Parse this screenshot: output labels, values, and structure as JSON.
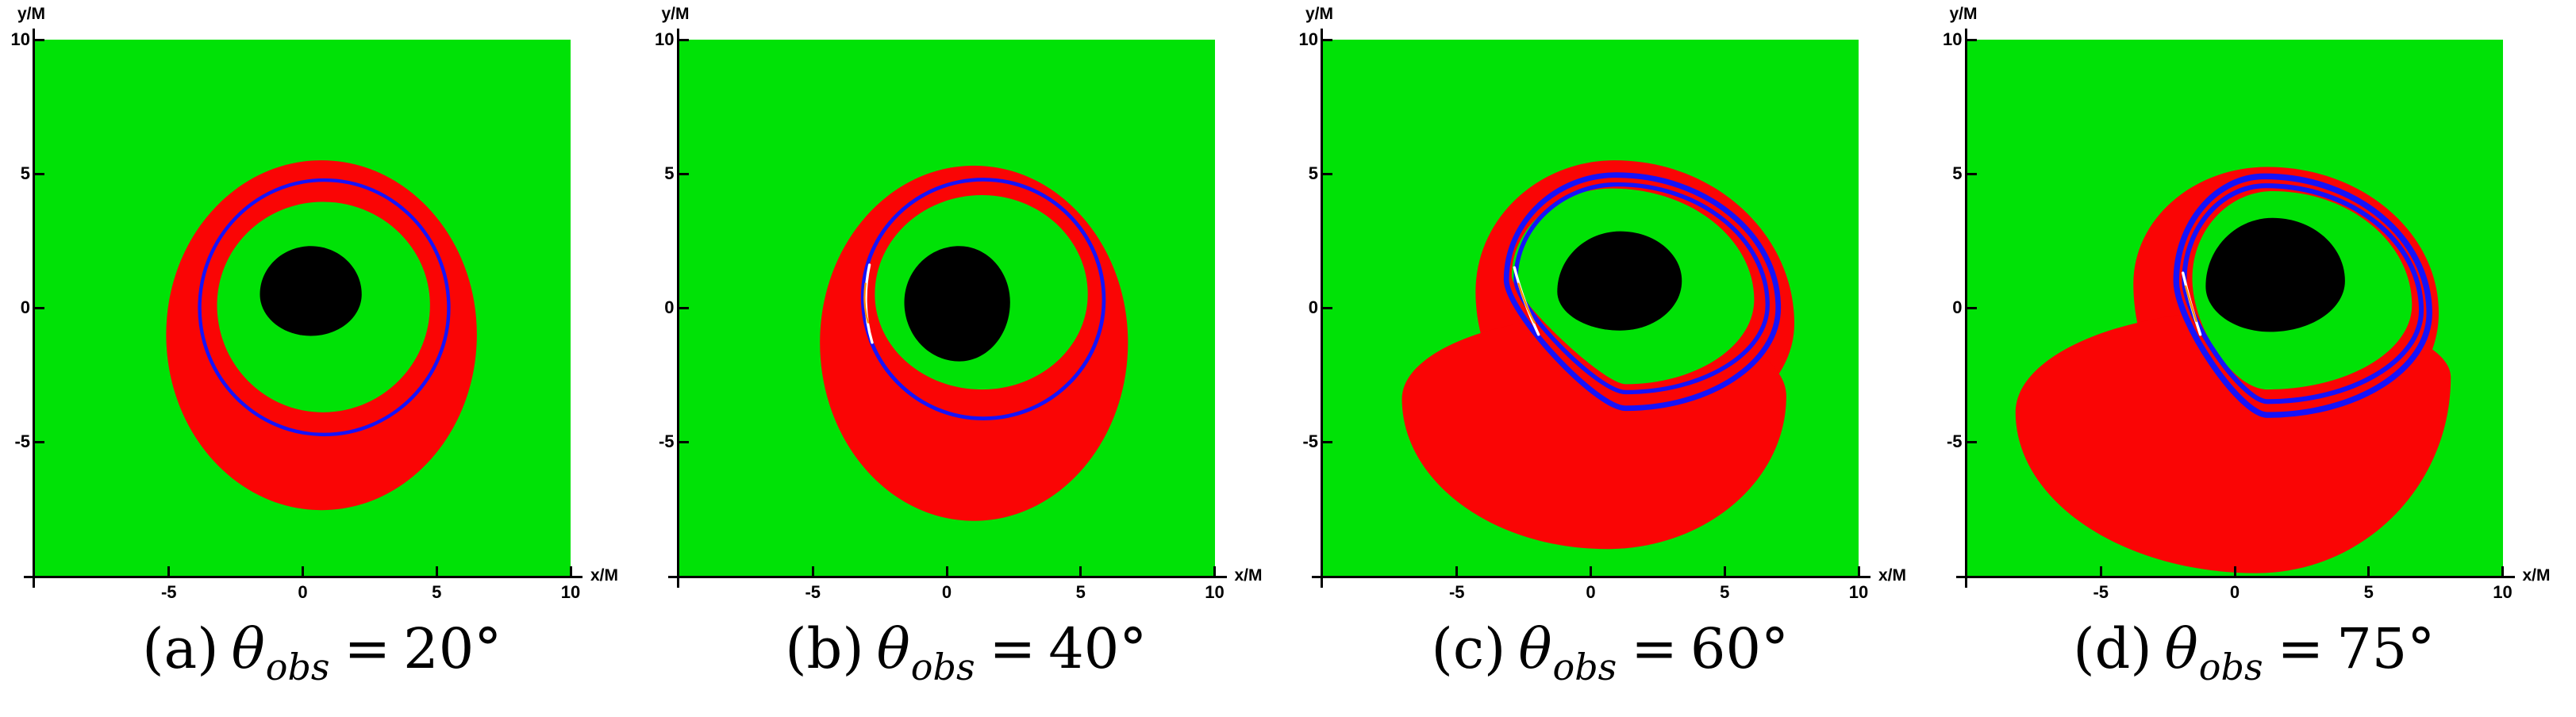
{
  "colors": {
    "background": "#ffffff",
    "plot_green": "#00e206",
    "disk_red": "#fa0505",
    "ring_blue": "#1512fa",
    "shadow_black": "#000000",
    "axis_black": "#000000",
    "artifact_white": "#ffffff",
    "artifact_orange": "#ff8c00"
  },
  "axes": {
    "x_label": "x/M",
    "y_label": "y/M",
    "xlim": [
      -10,
      10
    ],
    "ylim": [
      -10,
      10
    ],
    "x_ticks": [
      -5,
      0,
      5,
      10
    ],
    "y_ticks": [
      10,
      5,
      0,
      -5
    ],
    "grid": false
  },
  "chart_data": [
    {
      "type": "region-plot",
      "caption_prefix": "(a)",
      "caption_theta": "θ",
      "caption_sub": "obs",
      "caption_eq": "=",
      "caption_value": "20°",
      "theta_obs_deg": 20,
      "xlabel": "x/M",
      "ylabel": "y/M",
      "xlim": [
        -10,
        10
      ],
      "ylim": [
        -10,
        10
      ],
      "x_ticks": [
        -5,
        0,
        5,
        10
      ],
      "y_ticks": [
        10,
        5,
        0,
        -5
      ],
      "regions": {
        "background": "green",
        "red_primary_disk_image": [
          {
            "left": [
              -5.1,
              -1.0
            ],
            "top": [
              0.7,
              5.5
            ],
            "right": [
              6.5,
              -1.0
            ],
            "bottom": [
              0.7,
              -7.55
            ]
          }
        ],
        "inner_green_hole": {
          "left": [
            -3.2,
            0.1
          ],
          "top": [
            0.75,
            3.95
          ],
          "right": [
            4.75,
            0.1
          ],
          "bottom": [
            0.75,
            -3.9
          ]
        },
        "blue_secondary_ring_images": [
          {
            "left": [
              -3.85,
              0.0
            ],
            "top": [
              0.8,
              4.76
            ],
            "right": [
              5.45,
              0.0
            ],
            "bottom": [
              0.8,
              -4.73
            ],
            "sw": 0.13
          }
        ],
        "artifact_arcs": [],
        "black_shadow": {
          "left": [
            -1.6,
            0.5
          ],
          "top": [
            0.3,
            2.3
          ],
          "right": [
            2.2,
            0.5
          ],
          "bottom": [
            0.3,
            -1.05
          ]
        }
      }
    },
    {
      "type": "region-plot",
      "caption_prefix": "(b)",
      "caption_theta": "θ",
      "caption_sub": "obs",
      "caption_eq": "=",
      "caption_value": "40°",
      "theta_obs_deg": 40,
      "xlabel": "x/M",
      "ylabel": "y/M",
      "xlim": [
        -10,
        10
      ],
      "ylim": [
        -10,
        10
      ],
      "x_ticks": [
        -5,
        0,
        5,
        10
      ],
      "y_ticks": [
        10,
        5,
        0,
        -5
      ],
      "regions": {
        "background": "green",
        "red_primary_disk_image": [
          {
            "left": [
              -4.75,
              -1.3
            ],
            "top": [
              1.0,
              5.3
            ],
            "right": [
              6.75,
              -1.3
            ],
            "bottom": [
              1.0,
              -7.95
            ]
          }
        ],
        "inner_green_hole": {
          "left": [
            -2.7,
            0.5
          ],
          "top": [
            1.3,
            4.2
          ],
          "right": [
            5.25,
            0.5
          ],
          "bottom": [
            1.3,
            -3.05
          ]
        },
        "blue_secondary_ring_images": [
          {
            "left": [
              -3.15,
              0.4
            ],
            "top": [
              1.35,
              4.78
            ],
            "right": [
              5.85,
              0.3
            ],
            "bottom": [
              1.35,
              -4.13
            ],
            "sw": 0.14
          }
        ],
        "artifact_arcs": [
          {
            "pts": [
              [
                -2.9,
                1.6
              ],
              [
                -3.22,
                0.1
              ],
              [
                -2.8,
                -1.3
              ]
            ],
            "color": "white",
            "sw": 0.1
          },
          {
            "pts": [
              [
                -3.05,
                0.9
              ],
              [
                -3.15,
                0.1
              ],
              [
                -2.95,
                -0.55
              ]
            ],
            "color": "orange",
            "sw": 0.07
          }
        ],
        "black_shadow": {
          "left": [
            -1.6,
            0.2
          ],
          "top": [
            0.45,
            2.3
          ],
          "right": [
            2.35,
            0.2
          ],
          "bottom": [
            0.45,
            -2.0
          ]
        }
      }
    },
    {
      "type": "region-plot",
      "caption_prefix": "(c)",
      "caption_theta": "θ",
      "caption_sub": "obs",
      "caption_eq": "=",
      "caption_value": "60°",
      "theta_obs_deg": 60,
      "xlabel": "x/M",
      "ylabel": "y/M",
      "xlim": [
        -10,
        10
      ],
      "ylim": [
        -10,
        10
      ],
      "x_ticks": [
        -5,
        0,
        5,
        10
      ],
      "y_ticks": [
        10,
        5,
        0,
        -5
      ],
      "regions": {
        "background": "green",
        "red_primary_disk_image": [
          {
            "left": [
              -4.3,
              0.6
            ],
            "top": [
              0.9,
              5.5
            ],
            "right": [
              7.6,
              -0.6
            ],
            "bottom": [
              0.9,
              -5.2
            ]
          },
          {
            "left": [
              -7.05,
              -3.4
            ],
            "top": [
              0.5,
              -0.3
            ],
            "right": [
              7.3,
              -3.3
            ],
            "bottom": [
              0.6,
              -9.0
            ]
          }
        ],
        "inner_green_hole": {
          "left": [
            -2.95,
            1.2
          ],
          "top": [
            0.8,
            4.45
          ],
          "right": [
            6.1,
            0.3
          ],
          "bottom": [
            1.3,
            -2.85
          ],
          "k": [
            0.55,
            0.55,
            0.55,
            0.2
          ]
        },
        "blue_secondary_ring_images": [
          {
            "left": [
              -3.15,
              1.05
            ],
            "top": [
              0.95,
              4.95
            ],
            "right": [
              7.0,
              0.0
            ],
            "bottom": [
              1.3,
              -3.75
            ],
            "sw": 0.2,
            "k": [
              0.55,
              0.55,
              0.55,
              0.25
            ]
          },
          {
            "left": [
              -2.8,
              1.05
            ],
            "top": [
              1.0,
              4.6
            ],
            "right": [
              6.6,
              0.1
            ],
            "bottom": [
              1.3,
              -3.15
            ],
            "sw": 0.16,
            "k": [
              0.55,
              0.55,
              0.55,
              0.25
            ]
          }
        ],
        "artifact_arcs": [
          {
            "pts": [
              [
                -2.85,
                1.5
              ],
              [
                -2.55,
                0.3
              ],
              [
                -1.95,
                -1.0
              ]
            ],
            "color": "white",
            "sw": 0.1
          },
          {
            "pts": [
              [
                -2.7,
                0.9
              ],
              [
                -2.45,
                0.1
              ],
              [
                -2.1,
                -0.55
              ]
            ],
            "color": "orange",
            "sw": 0.07
          }
        ],
        "black_shadow": {
          "left": [
            -1.25,
            0.6
          ],
          "top": [
            1.1,
            2.85
          ],
          "right": [
            3.4,
            1.0
          ],
          "bottom": [
            1.1,
            -0.85
          ]
        }
      }
    },
    {
      "type": "region-plot",
      "caption_prefix": "(d)",
      "caption_theta": "θ",
      "caption_sub": "obs",
      "caption_eq": "=",
      "caption_value": "75°",
      "theta_obs_deg": 75,
      "xlabel": "x/M",
      "ylabel": "y/M",
      "xlim": [
        -10,
        10
      ],
      "ylim": [
        -10,
        10
      ],
      "x_ticks": [
        -5,
        0,
        5,
        10
      ],
      "y_ticks": [
        10,
        5,
        0,
        -5
      ],
      "regions": {
        "background": "green",
        "red_primary_disk_image": [
          {
            "left": [
              -3.8,
              0.9
            ],
            "top": [
              1.2,
              5.25
            ],
            "right": [
              7.6,
              -0.2
            ],
            "bottom": [
              1.2,
              -5.2
            ]
          },
          {
            "left": [
              -8.2,
              -3.9
            ],
            "top": [
              0.5,
              -0.1
            ],
            "right": [
              8.05,
              -2.6
            ],
            "bottom": [
              0.8,
              -9.9
            ]
          }
        ],
        "inner_green_hole": {
          "left": [
            -1.6,
            1.1
          ],
          "top": [
            1.4,
            4.35
          ],
          "right": [
            6.6,
            0.1
          ],
          "bottom": [
            1.2,
            -3.05
          ],
          "k": [
            0.55,
            0.55,
            0.55,
            0.45
          ]
        },
        "blue_secondary_ring_images": [
          {
            "left": [
              -2.2,
              1.0
            ],
            "top": [
              1.1,
              4.9
            ],
            "right": [
              7.25,
              -0.2
            ],
            "bottom": [
              1.2,
              -4.0
            ],
            "sw": 0.22,
            "k": [
              0.55,
              0.55,
              0.55,
              0.3
            ]
          },
          {
            "left": [
              -1.9,
              1.0
            ],
            "top": [
              1.15,
              4.55
            ],
            "right": [
              6.95,
              -0.1
            ],
            "bottom": [
              1.2,
              -3.5
            ],
            "sw": 0.18,
            "k": [
              0.55,
              0.55,
              0.55,
              0.3
            ]
          }
        ],
        "artifact_arcs": [
          {
            "pts": [
              [
                -1.95,
                1.3
              ],
              [
                -1.7,
                0.2
              ],
              [
                -1.3,
                -1.0
              ]
            ],
            "color": "white",
            "sw": 0.1
          },
          {
            "pts": [
              [
                -1.85,
                0.8
              ],
              [
                -1.65,
                0.1
              ],
              [
                -1.45,
                -0.5
              ]
            ],
            "color": "orange",
            "sw": 0.07
          }
        ],
        "black_shadow": {
          "left": [
            -1.1,
            0.8
          ],
          "top": [
            1.4,
            3.35
          ],
          "right": [
            4.1,
            1.0
          ],
          "bottom": [
            1.3,
            -0.9
          ]
        }
      }
    }
  ]
}
